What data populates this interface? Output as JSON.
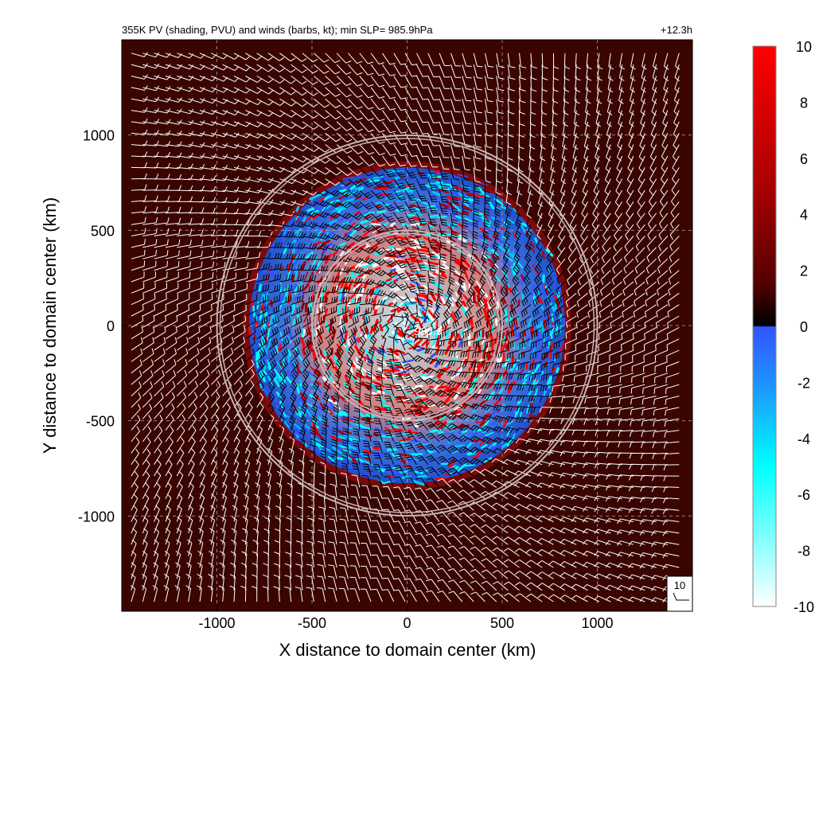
{
  "chart_data": {
    "type": "heatmap",
    "title": "355K PV (shading, PVU) and winds (barbs, kt); min SLP=  985.9hPa",
    "time_label": "+12.3h",
    "xlabel": "X distance to domain center (km)",
    "ylabel": "Y distance to domain center (km)",
    "xlim": [
      -1500,
      1500
    ],
    "ylim": [
      -1500,
      1500
    ],
    "x_ticks": [
      -1000,
      -500,
      0,
      500,
      1000
    ],
    "x_tick_labels": [
      "-1000",
      "-500",
      "0",
      "500",
      "1000"
    ],
    "y_ticks": [
      1000,
      500,
      0,
      -500,
      -1000
    ],
    "y_tick_labels": [
      "1000",
      "500",
      "0",
      "-500",
      "-1000"
    ],
    "grid": true,
    "center_label": "985.9",
    "reference_circles_km": [
      500,
      1000
    ],
    "disturbed_region_radius_km": 830,
    "colorbar": {
      "range": [
        -10,
        10
      ],
      "ticks": [
        10,
        8,
        6,
        4,
        2,
        0,
        -2,
        -4,
        -6,
        -8,
        -10
      ],
      "tick_labels": [
        "10",
        "8",
        "6",
        "4",
        "2",
        "0",
        "-2",
        "-4",
        "-6",
        "-8",
        "-10"
      ],
      "positive_colors": [
        "#2a0000",
        "#550000",
        "#aa0000",
        "#ff0000"
      ],
      "negative_colors": [
        "#3355ff",
        "#00c8ff",
        "#00ffff",
        "#e8ffff"
      ]
    },
    "wind_key": {
      "label": "10",
      "speed_kt": 10
    },
    "background_color": "#3a0500"
  }
}
